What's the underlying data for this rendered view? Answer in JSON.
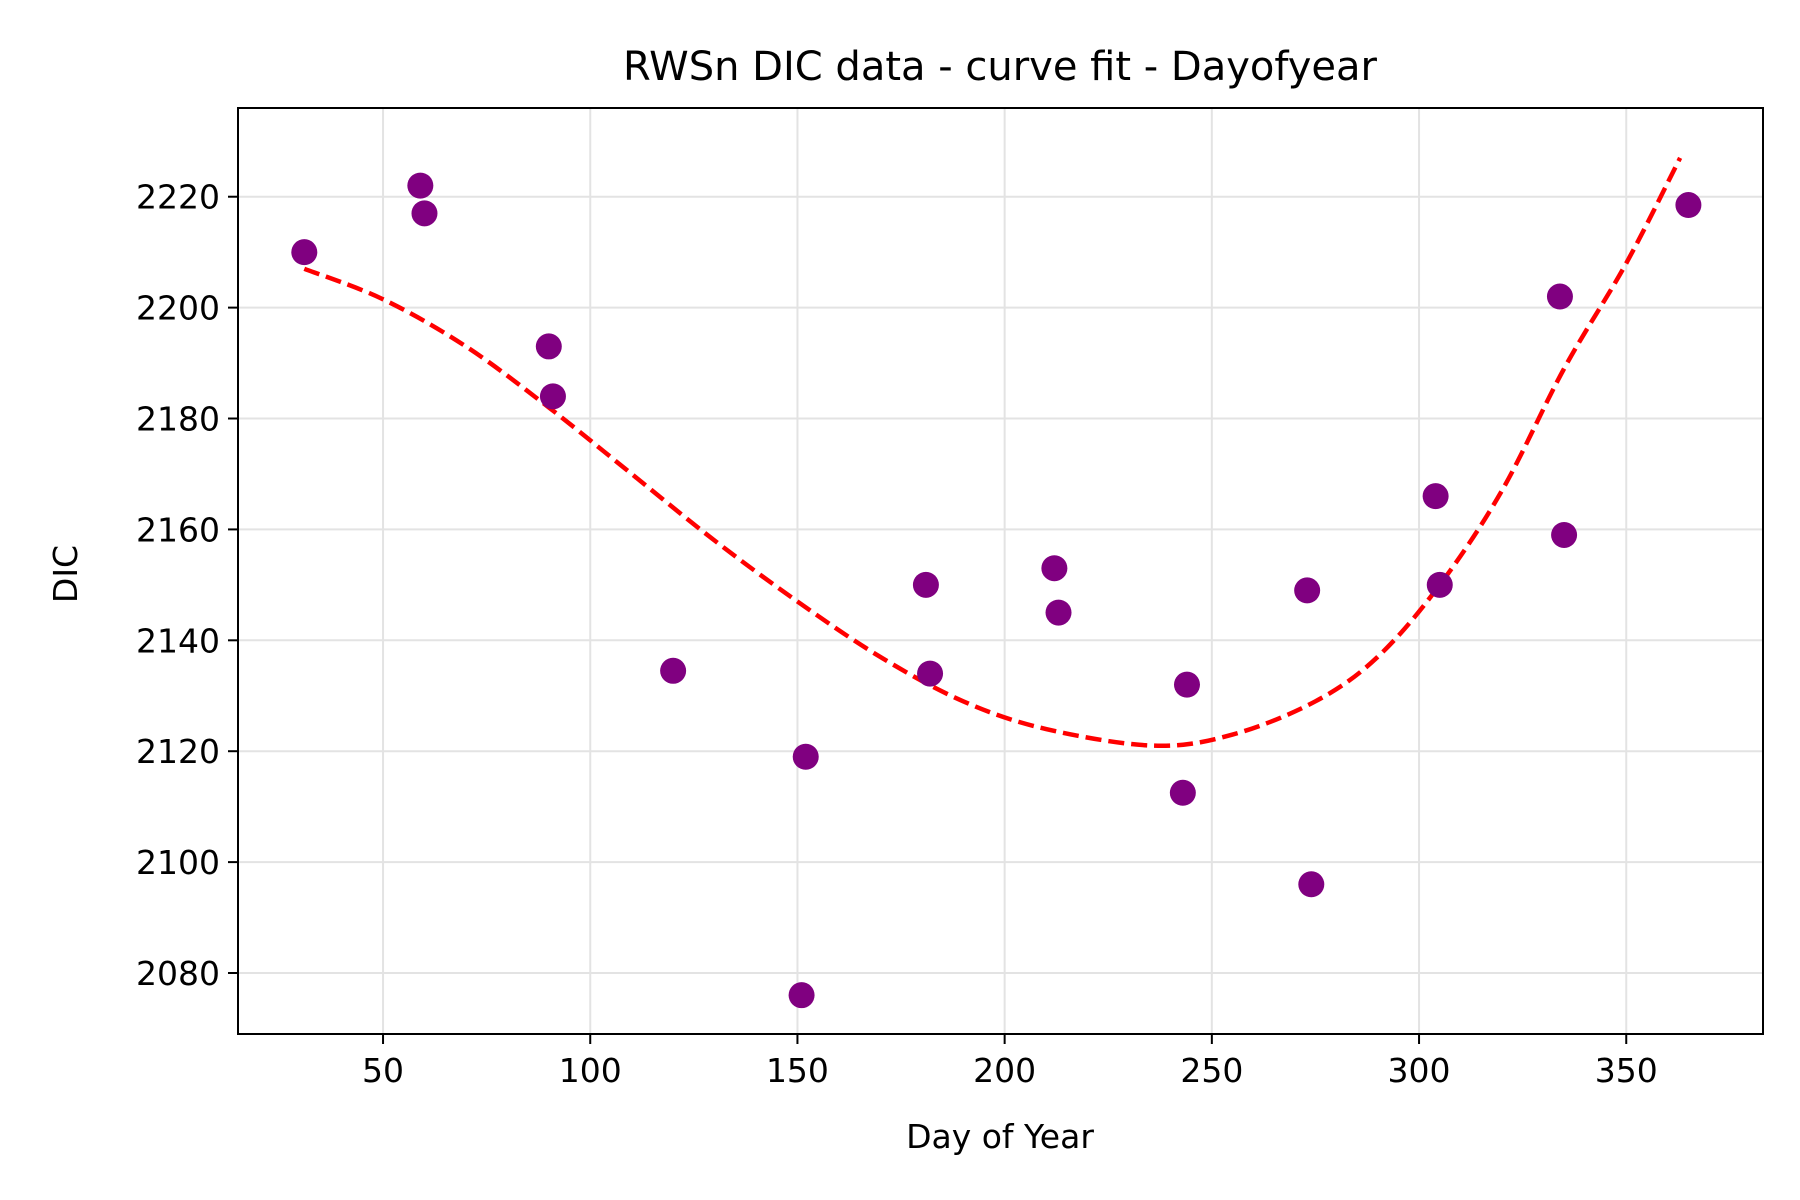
{
  "chart_data": {
    "type": "scatter",
    "title": "RWSn DIC data - curve fit - Dayofyear",
    "xlabel": "Day of Year",
    "ylabel": "DIC",
    "xlim": [
      15,
      383
    ],
    "ylim": [
      2069,
      2236
    ],
    "xticks": [
      50,
      100,
      150,
      200,
      250,
      300,
      350
    ],
    "yticks": [
      2080,
      2100,
      2120,
      2140,
      2160,
      2180,
      2200,
      2220
    ],
    "grid": true,
    "series": [
      {
        "kind": "scatter",
        "color": "#800080",
        "points": [
          {
            "x": 31,
            "y": 2210
          },
          {
            "x": 59,
            "y": 2222
          },
          {
            "x": 60,
            "y": 2217
          },
          {
            "x": 90,
            "y": 2193
          },
          {
            "x": 91,
            "y": 2184
          },
          {
            "x": 120,
            "y": 2134.5
          },
          {
            "x": 151,
            "y": 2076
          },
          {
            "x": 152,
            "y": 2119
          },
          {
            "x": 181,
            "y": 2150
          },
          {
            "x": 182,
            "y": 2134
          },
          {
            "x": 212,
            "y": 2153
          },
          {
            "x": 213,
            "y": 2145
          },
          {
            "x": 243,
            "y": 2112.5
          },
          {
            "x": 244,
            "y": 2132
          },
          {
            "x": 273,
            "y": 2149
          },
          {
            "x": 274,
            "y": 2096
          },
          {
            "x": 304,
            "y": 2166
          },
          {
            "x": 305,
            "y": 2150
          },
          {
            "x": 334,
            "y": 2202
          },
          {
            "x": 335,
            "y": 2159
          },
          {
            "x": 365,
            "y": 2218.5
          }
        ]
      },
      {
        "kind": "line",
        "style": "dashed",
        "color": "#ff0000",
        "points": [
          {
            "x": 31,
            "y": 2207
          },
          {
            "x": 50,
            "y": 2201.5
          },
          {
            "x": 70,
            "y": 2193
          },
          {
            "x": 90,
            "y": 2182
          },
          {
            "x": 110,
            "y": 2170
          },
          {
            "x": 130,
            "y": 2158
          },
          {
            "x": 150,
            "y": 2147
          },
          {
            "x": 170,
            "y": 2137
          },
          {
            "x": 190,
            "y": 2129
          },
          {
            "x": 210,
            "y": 2124
          },
          {
            "x": 236,
            "y": 2121
          },
          {
            "x": 255,
            "y": 2123
          },
          {
            "x": 275,
            "y": 2129
          },
          {
            "x": 290,
            "y": 2137
          },
          {
            "x": 305,
            "y": 2150
          },
          {
            "x": 320,
            "y": 2167
          },
          {
            "x": 335,
            "y": 2189
          },
          {
            "x": 350,
            "y": 2208
          },
          {
            "x": 363,
            "y": 2227
          }
        ]
      }
    ]
  }
}
